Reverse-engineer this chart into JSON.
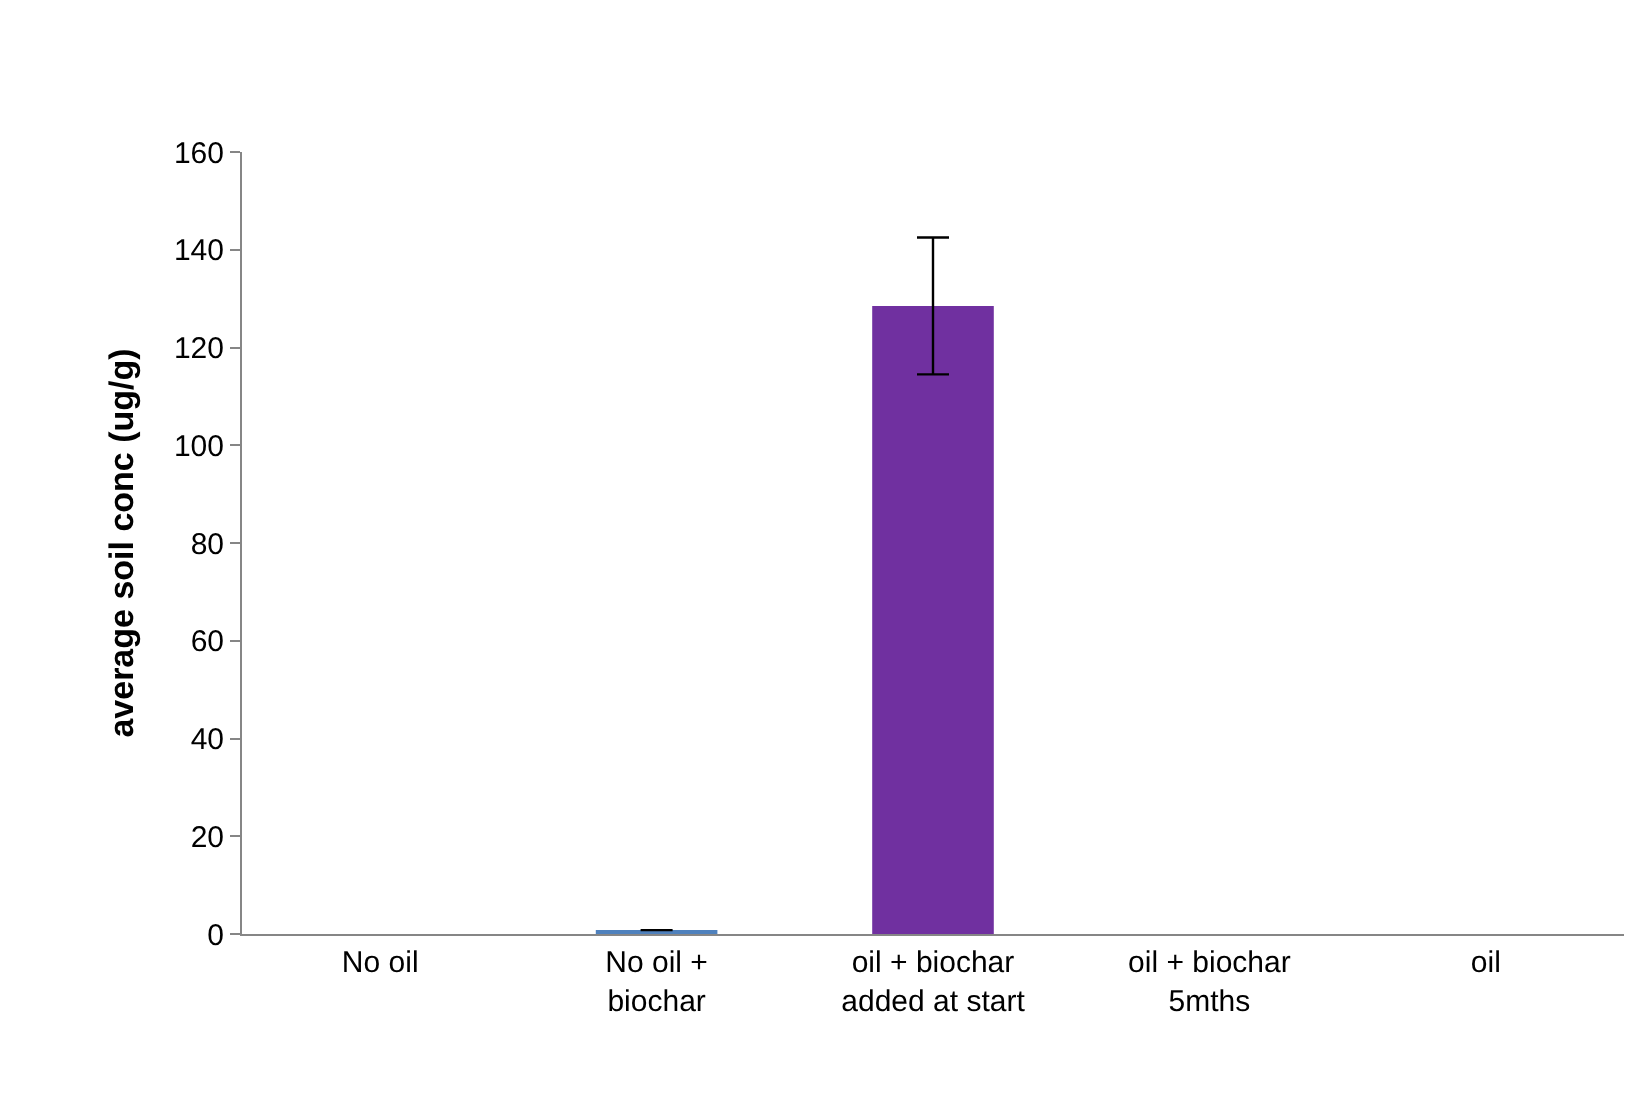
{
  "chart_data": {
    "type": "bar",
    "ylabel": "average soil conc (ug/g)",
    "categories": [
      "No oil",
      "No oil +\nbiochar",
      "oil + biochar\nadded at start",
      "oil + biochar\n5mths",
      "oil"
    ],
    "values": [
      null,
      0.8,
      128.5,
      null,
      null
    ],
    "colors": [
      "#4f81bd",
      "#4f81bd",
      "#7030a0",
      "#4f81bd",
      "#4f81bd"
    ],
    "errors": [
      null,
      null,
      14,
      null,
      null
    ],
    "ylim": [
      0,
      160
    ],
    "yticks": [
      0,
      20,
      40,
      60,
      80,
      100,
      120,
      140,
      160
    ]
  }
}
